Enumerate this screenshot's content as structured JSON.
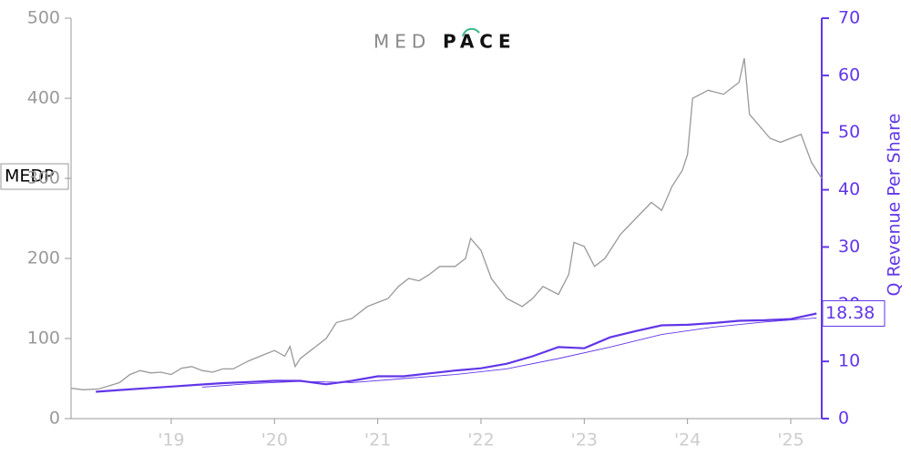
{
  "chart_data": {
    "type": "line",
    "ticker": "MEDP",
    "logo": {
      "light": "MED",
      "bold": "PACE"
    },
    "y2label": "Q Revenue Per Share",
    "xlim": [
      2018.03,
      2025.3
    ],
    "xticks": [
      {
        "value": 2019,
        "label": "'19"
      },
      {
        "value": 2020,
        "label": "'20"
      },
      {
        "value": 2021,
        "label": "'21"
      },
      {
        "value": 2022,
        "label": "'22"
      },
      {
        "value": 2023,
        "label": "'23"
      },
      {
        "value": 2024,
        "label": "'24"
      },
      {
        "value": 2025,
        "label": "'25"
      }
    ],
    "ylim": [
      0,
      500
    ],
    "yticks": [
      0,
      100,
      200,
      300,
      400,
      500
    ],
    "y2lim": [
      0,
      70
    ],
    "y2ticks": [
      0,
      10,
      20,
      30,
      40,
      50,
      60,
      70
    ],
    "series": [
      {
        "axis": "y2",
        "color": "#6236e8",
        "width": 2.2,
        "x": [
          2018.27,
          2018.5,
          2018.75,
          2019.0,
          2019.25,
          2019.5,
          2019.75,
          2020.0,
          2020.25,
          2020.5,
          2020.75,
          2021.0,
          2021.25,
          2021.5,
          2021.75,
          2022.0,
          2022.25,
          2022.5,
          2022.75,
          2023.0,
          2023.25,
          2023.5,
          2023.75,
          2024.0,
          2024.25,
          2024.5,
          2024.75,
          2025.0,
          2025.25
        ],
        "values": [
          4.7,
          5.0,
          5.3,
          5.6,
          5.9,
          6.2,
          6.4,
          6.6,
          6.6,
          6.0,
          6.6,
          7.4,
          7.4,
          7.9,
          8.4,
          8.8,
          9.6,
          10.9,
          12.5,
          12.3,
          14.2,
          15.3,
          16.3,
          16.4,
          16.7,
          17.1,
          17.2,
          17.4,
          18.38
        ]
      },
      {
        "axis": "y2",
        "color": "#6236e8",
        "width": 0.9,
        "x": [
          2019.3,
          2019.75,
          2020.25,
          2020.75,
          2021.25,
          2021.75,
          2022.25,
          2022.75,
          2023.25,
          2023.75,
          2024.25,
          2024.75,
          2025.25
        ],
        "values": [
          5.5,
          6.1,
          6.5,
          6.3,
          7.0,
          7.7,
          8.7,
          10.5,
          12.5,
          14.7,
          16.0,
          16.9,
          17.6
        ]
      },
      {
        "axis": "y",
        "color": "#999999",
        "width": 1.3,
        "x": [
          2018.03,
          2018.15,
          2018.3,
          2018.5,
          2018.6,
          2018.7,
          2018.8,
          2018.9,
          2019.0,
          2019.1,
          2019.2,
          2019.3,
          2019.4,
          2019.5,
          2019.6,
          2019.75,
          2019.9,
          2020.0,
          2020.1,
          2020.15,
          2020.2,
          2020.25,
          2020.35,
          2020.5,
          2020.6,
          2020.75,
          2020.9,
          2021.0,
          2021.1,
          2021.2,
          2021.3,
          2021.4,
          2021.5,
          2021.6,
          2021.75,
          2021.85,
          2021.9,
          2022.0,
          2022.1,
          2022.25,
          2022.4,
          2022.5,
          2022.6,
          2022.75,
          2022.85,
          2022.9,
          2023.0,
          2023.1,
          2023.2,
          2023.35,
          2023.5,
          2023.65,
          2023.75,
          2023.85,
          2023.95,
          2024.0,
          2024.05,
          2024.2,
          2024.35,
          2024.5,
          2024.55,
          2024.6,
          2024.7,
          2024.8,
          2024.9,
          2025.0,
          2025.1,
          2025.2,
          2025.3
        ],
        "values": [
          38,
          36,
          37,
          45,
          55,
          60,
          57,
          58,
          55,
          63,
          65,
          60,
          58,
          62,
          62,
          72,
          80,
          85,
          78,
          90,
          65,
          75,
          85,
          100,
          120,
          125,
          140,
          145,
          150,
          165,
          175,
          172,
          180,
          190,
          190,
          200,
          225,
          210,
          175,
          150,
          140,
          150,
          165,
          155,
          180,
          220,
          215,
          190,
          200,
          230,
          250,
          270,
          260,
          290,
          310,
          330,
          400,
          410,
          405,
          420,
          450,
          380,
          365,
          350,
          345,
          350,
          355,
          320,
          300
        ]
      }
    ]
  }
}
